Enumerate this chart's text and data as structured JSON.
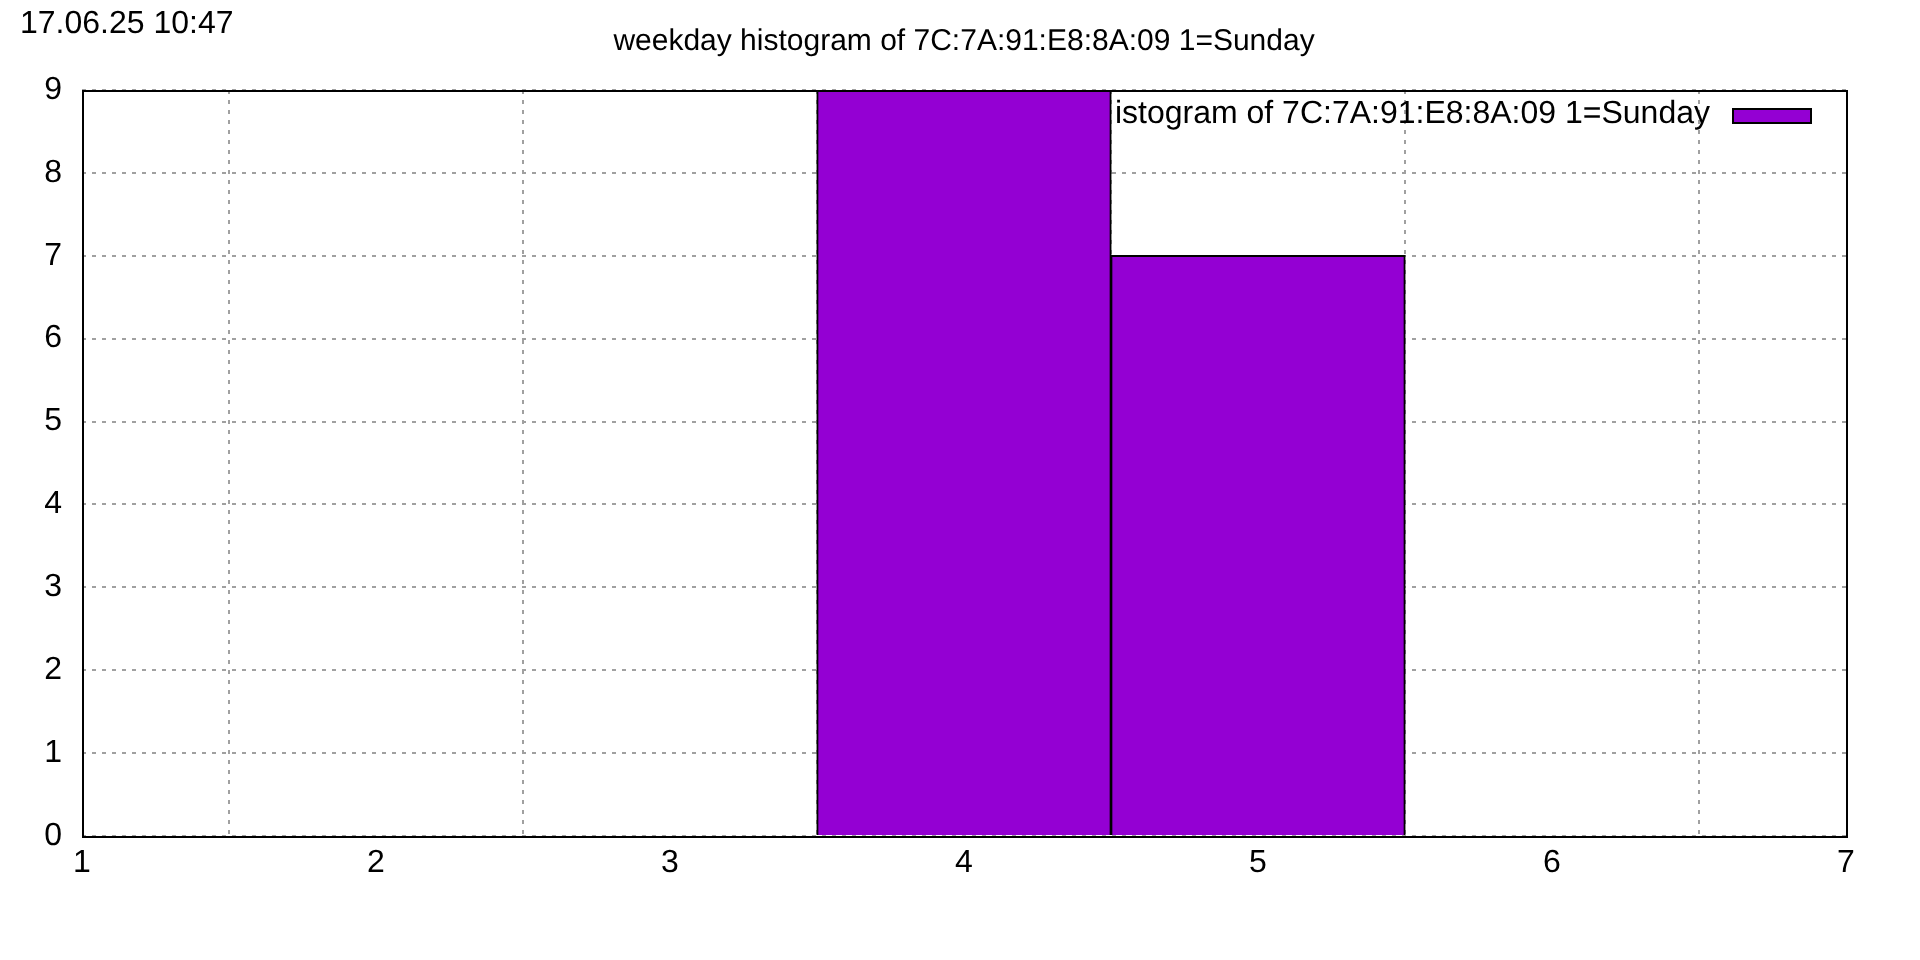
{
  "chart_data": {
    "type": "histogram",
    "title": "weekday histogram of 7C:7A:91:E8:8A:09 1=Sunday",
    "annotations": [
      "17.06.25 10:47"
    ],
    "bins": [
      3.5,
      4.5,
      5.5
    ],
    "series": [
      {
        "name": "istogram of 7C:7A:91:E8:8A:09 1=Sunday",
        "color": "#9400d3",
        "values": [
          9,
          7
        ]
      }
    ],
    "xlim": [
      1,
      7
    ],
    "xticks": [
      1,
      2,
      3,
      4,
      5,
      6,
      7
    ],
    "ylim": [
      0,
      9
    ],
    "yticks": [
      0,
      1,
      2,
      3,
      4,
      5,
      6,
      7,
      8,
      9
    ],
    "grid": true,
    "legend": "top right"
  }
}
